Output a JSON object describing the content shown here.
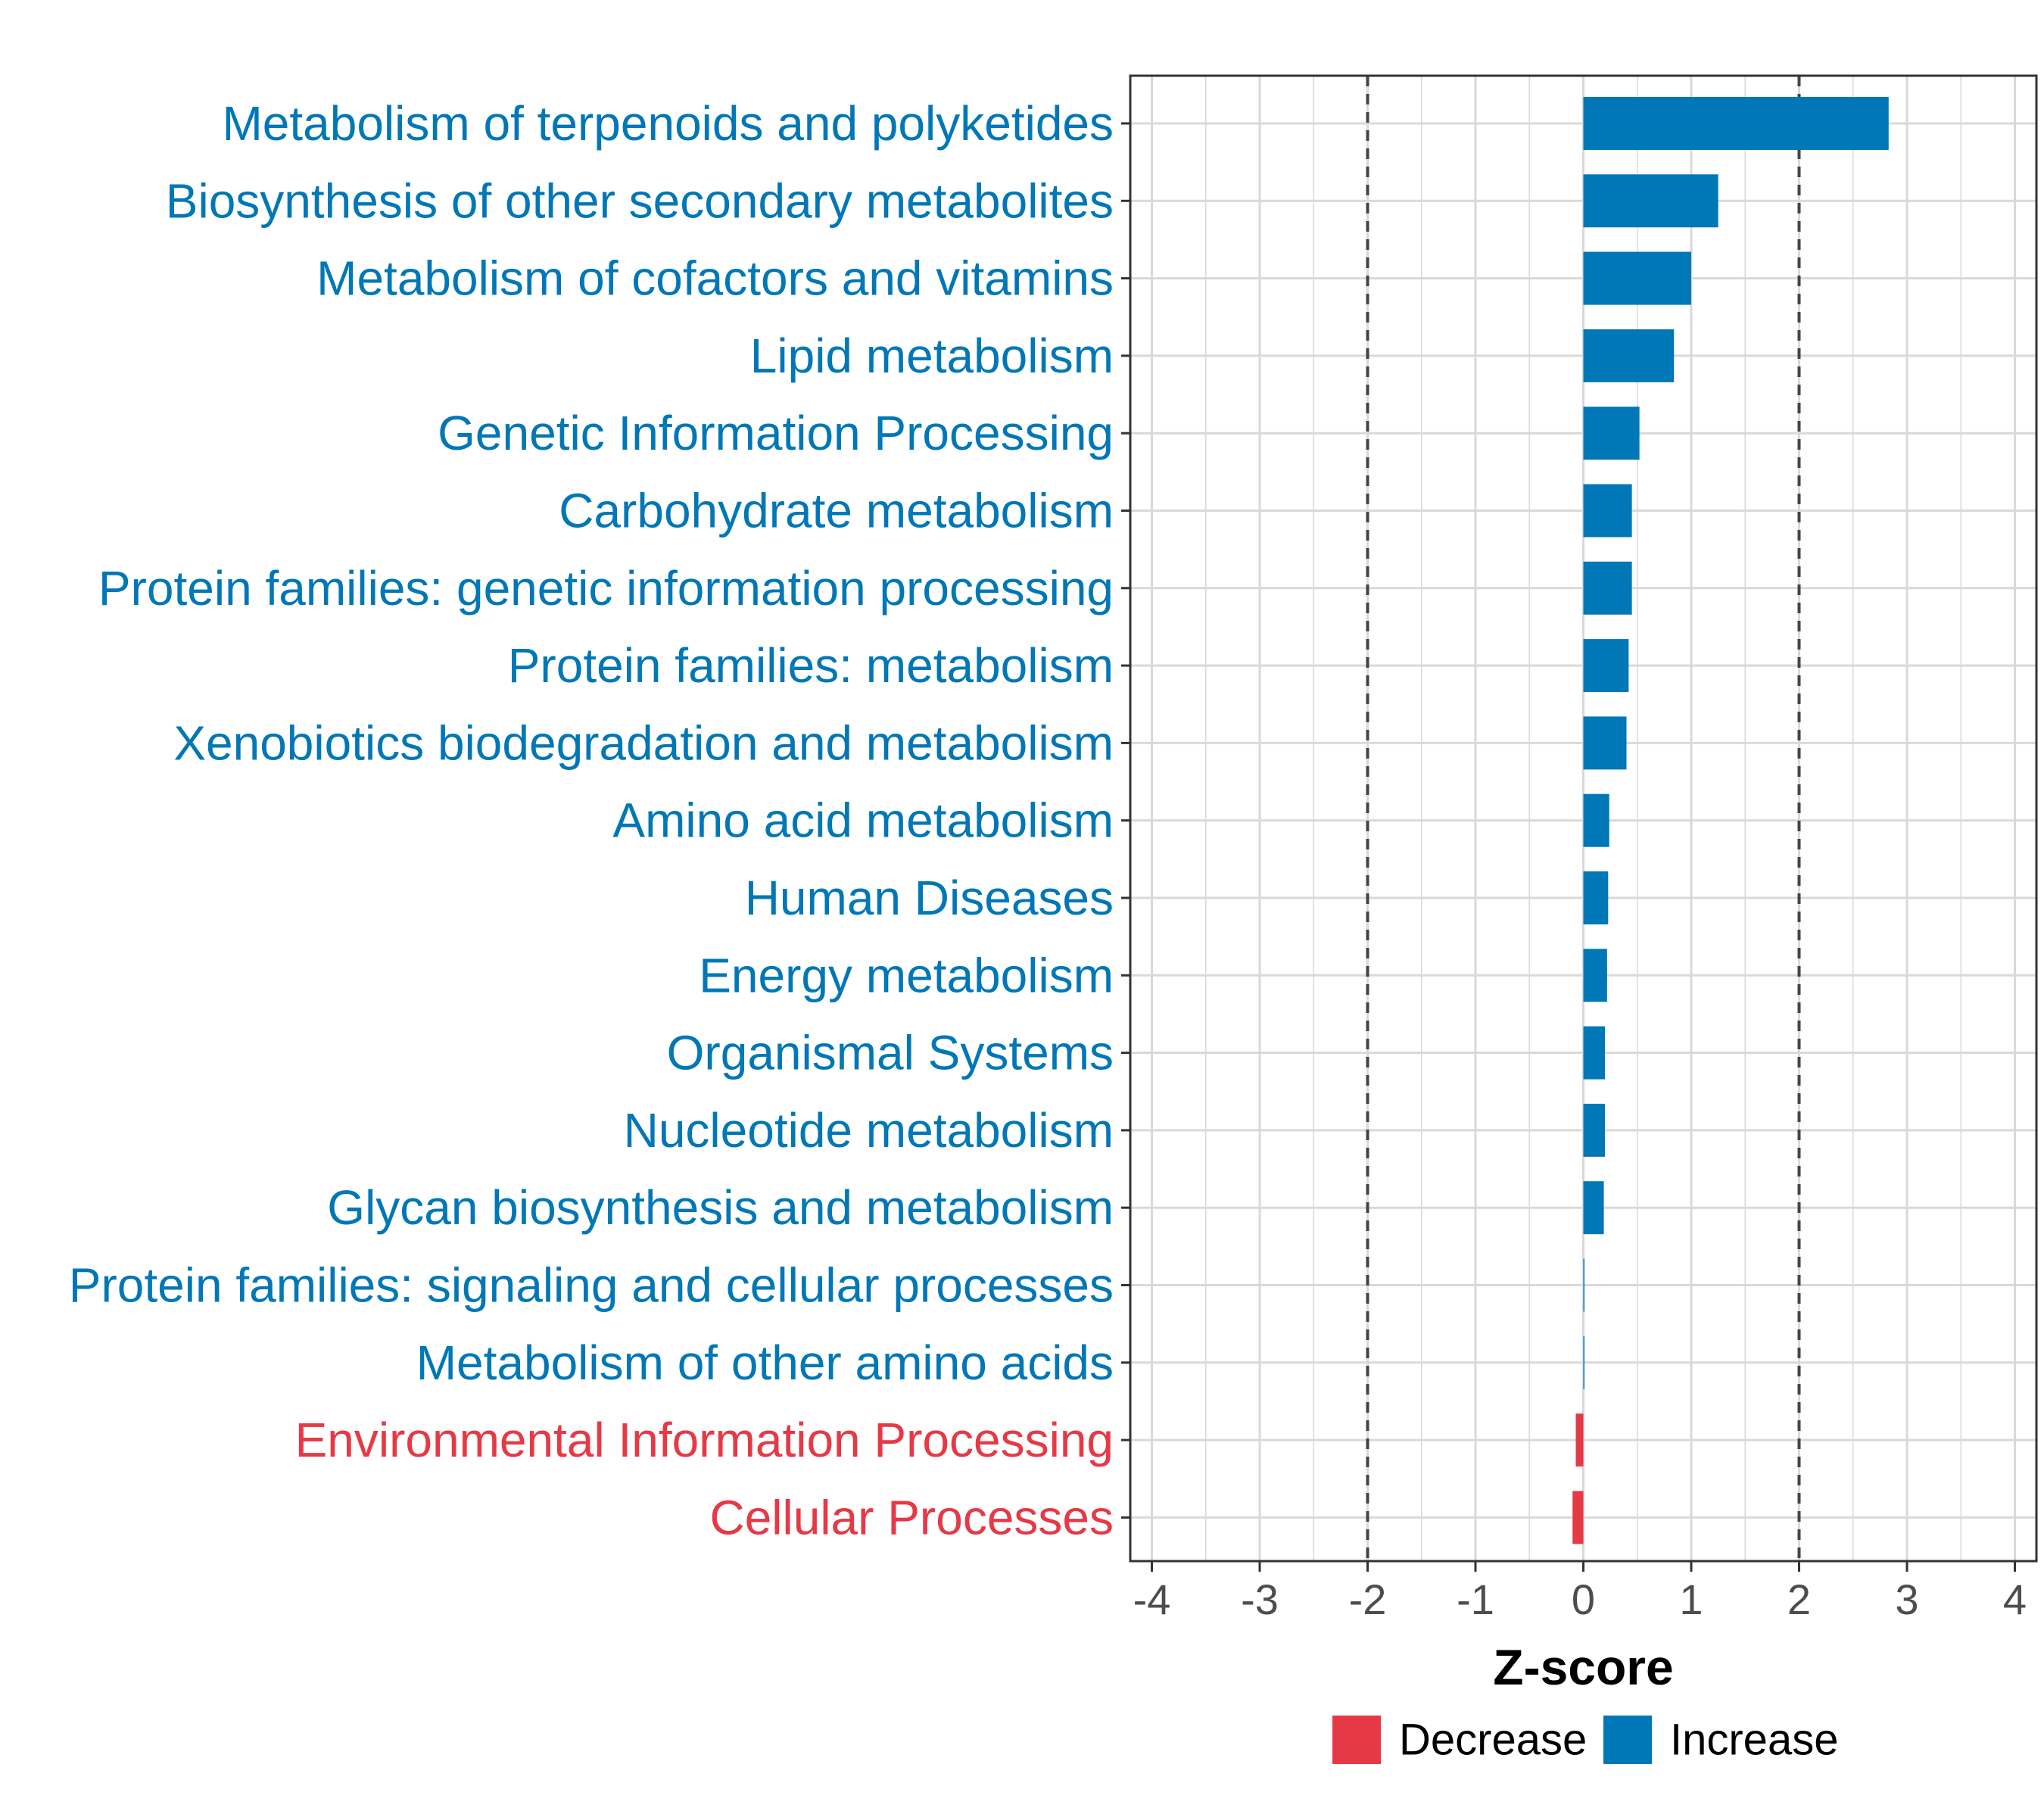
{
  "chart_data": {
    "type": "bar",
    "orientation": "horizontal",
    "title": "",
    "xlabel": "Z-score",
    "ylabel": "",
    "xlim": [
      -4.2,
      4.2
    ],
    "x_ticks": [
      "-4",
      "-3",
      "-2",
      "-1",
      "0",
      "1",
      "2",
      "3",
      "4"
    ],
    "reference_lines": [
      -2,
      2
    ],
    "grid": true,
    "categories": [
      "Metabolism of terpenoids and polyketides",
      "Biosynthesis of other secondary metabolites",
      "Metabolism of cofactors and vitamins",
      "Lipid metabolism",
      "Genetic Information Processing",
      "Carbohydrate metabolism",
      "Protein families: genetic information processing",
      "Protein families: metabolism",
      "Xenobiotics biodegradation and metabolism",
      "Amino acid metabolism",
      "Human Diseases",
      "Energy metabolism",
      "Organismal Systems",
      "Nucleotide metabolism",
      "Glycan biosynthesis and metabolism",
      "Protein families: signaling and cellular processes",
      "Metabolism of other amino acids",
      "Environmental Information Processing",
      "Cellular Processes"
    ],
    "values": [
      2.83,
      1.25,
      1.0,
      0.84,
      0.52,
      0.45,
      0.45,
      0.42,
      0.4,
      0.24,
      0.23,
      0.22,
      0.2,
      0.2,
      0.19,
      0.01,
      0.01,
      -0.07,
      -0.1
    ],
    "groups": [
      "Increase",
      "Increase",
      "Increase",
      "Increase",
      "Increase",
      "Increase",
      "Increase",
      "Increase",
      "Increase",
      "Increase",
      "Increase",
      "Increase",
      "Increase",
      "Increase",
      "Increase",
      "Increase",
      "Increase",
      "Decrease",
      "Decrease"
    ],
    "legend": {
      "position": "bottom",
      "items": [
        {
          "label": "Decrease",
          "color": "#e63946"
        },
        {
          "label": "Increase",
          "color": "#0077b6"
        }
      ]
    },
    "colors": {
      "Decrease": "#e63946",
      "Increase": "#0077b6"
    }
  }
}
